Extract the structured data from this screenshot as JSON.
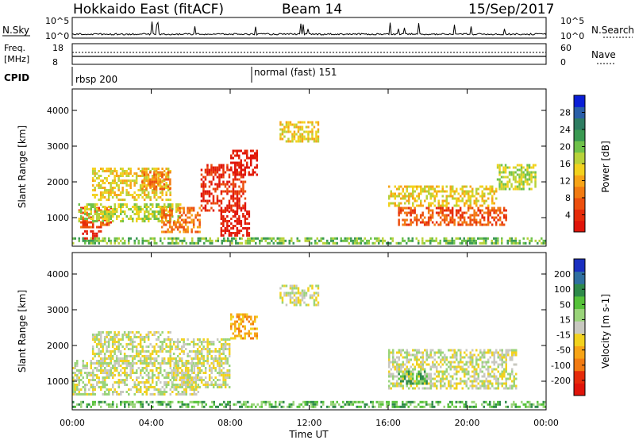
{
  "header": {
    "radar": "Hokkaido East (fitACF)",
    "beam": "Beam 14",
    "date": "15/Sep/2017"
  },
  "noise_panel": {
    "left_label": "N.Sky",
    "right_label": "N.Search",
    "left_ticks": [
      "10^5",
      "10^0"
    ],
    "right_ticks": [
      "10^5",
      "10^0"
    ]
  },
  "freq_panel": {
    "left_label_line1": "Freq.",
    "left_label_line2": "[MHz]",
    "left_ticks": [
      "18",
      "8"
    ],
    "right_label": "Nave",
    "right_ticks": [
      "60",
      "0"
    ]
  },
  "cpid_panel": {
    "label": "CPID",
    "modes": [
      {
        "name": "rbsp 200",
        "start_hour": 0
      },
      {
        "name": "normal (fast) 151",
        "start_hour": 9.0
      }
    ]
  },
  "chart_data": [
    {
      "type": "heatmap",
      "title": "",
      "ylabel": "Slant Range [km]",
      "xlabel": "",
      "ylim": [
        200,
        4600
      ],
      "yticks": [
        "1000",
        "2000",
        "3000",
        "4000"
      ],
      "xlim": [
        0,
        24
      ],
      "colorbar": {
        "label": "Power [dB]",
        "ticks": [
          "28",
          "24",
          "20",
          "16",
          "12",
          "8",
          "4"
        ],
        "colors": [
          "#0a1ed6",
          "#2a5fa8",
          "#2e7d62",
          "#3a9a52",
          "#6fc24a",
          "#b8d23a",
          "#f2d21e",
          "#f7a417",
          "#f27b12",
          "#ec4f0e",
          "#e62b0a",
          "#e0140a"
        ]
      },
      "regions_note": "echo regions in slant range vs time",
      "regions": [
        {
          "t0": 0.3,
          "t1": 2.0,
          "r0": 700,
          "r1": 1300,
          "level": 9
        },
        {
          "t0": 0.5,
          "t1": 1.5,
          "r0": 400,
          "r1": 650,
          "level": 11
        },
        {
          "t0": 0.3,
          "t1": 5.5,
          "r0": 900,
          "r1": 1400,
          "level": 5
        },
        {
          "t0": 1.0,
          "t1": 5.0,
          "r0": 1500,
          "r1": 2400,
          "level": 6
        },
        {
          "t0": 3.5,
          "t1": 5.0,
          "r0": 1800,
          "r1": 2300,
          "level": 8
        },
        {
          "t0": 4.5,
          "t1": 6.5,
          "r0": 600,
          "r1": 1300,
          "level": 8
        },
        {
          "t0": 6.5,
          "t1": 8.8,
          "r0": 1200,
          "r1": 2500,
          "level": 10
        },
        {
          "t0": 7.5,
          "t1": 9.0,
          "r0": 500,
          "r1": 1200,
          "level": 11
        },
        {
          "t0": 8.0,
          "t1": 9.4,
          "r0": 2200,
          "r1": 2900,
          "level": 11
        },
        {
          "t0": 10.5,
          "t1": 12.5,
          "r0": 3100,
          "r1": 3700,
          "level": 6
        },
        {
          "t0": 16.5,
          "t1": 22.0,
          "r0": 800,
          "r1": 1300,
          "level": 9
        },
        {
          "t0": 16.0,
          "t1": 21.5,
          "r0": 1300,
          "r1": 1900,
          "level": 6
        },
        {
          "t0": 21.5,
          "t1": 23.5,
          "r0": 1800,
          "r1": 2500,
          "level": 5
        },
        {
          "t0": 0.0,
          "t1": 24.0,
          "r0": 250,
          "r1": 450,
          "level": 4
        }
      ]
    },
    {
      "type": "heatmap",
      "title": "",
      "ylabel": "Slant Range [km]",
      "xlabel": "Time UT",
      "ylim": [
        200,
        4600
      ],
      "yticks": [
        "1000",
        "2000",
        "3000",
        "4000"
      ],
      "xlim": [
        0,
        24
      ],
      "xticks": [
        "00:00",
        "04:00",
        "08:00",
        "12:00",
        "16:00",
        "20:00",
        "00:00"
      ],
      "colorbar": {
        "label": "Velocity [m s-1]",
        "ticks": [
          "200",
          "100",
          "50",
          "15",
          "-15",
          "-50",
          "-100",
          "-200"
        ],
        "colors": [
          "#1a2fc0",
          "#2f6fa0",
          "#2e8a4a",
          "#56c23a",
          "#9ad47a",
          "#c8c8c0",
          "#f2d21e",
          "#f7a417",
          "#f27b12",
          "#e62b0a",
          "#e0140a"
        ]
      },
      "regions": [
        {
          "t0": 0.0,
          "t1": 6.5,
          "r0": 600,
          "r1": 1600,
          "level": 5
        },
        {
          "t0": 1.0,
          "t1": 5.0,
          "r0": 1500,
          "r1": 2400,
          "level": 5
        },
        {
          "t0": 5.0,
          "t1": 8.0,
          "r0": 800,
          "r1": 2200,
          "level": 5
        },
        {
          "t0": 8.0,
          "t1": 9.4,
          "r0": 2200,
          "r1": 2900,
          "level": 7
        },
        {
          "t0": 10.5,
          "t1": 12.5,
          "r0": 3100,
          "r1": 3700,
          "level": 5
        },
        {
          "t0": 16.0,
          "t1": 22.5,
          "r0": 800,
          "r1": 1900,
          "level": 5
        },
        {
          "t0": 16.5,
          "t1": 18.0,
          "r0": 900,
          "r1": 1300,
          "level": 3
        },
        {
          "t0": 0.0,
          "t1": 24.0,
          "r0": 250,
          "r1": 450,
          "level": 3
        }
      ]
    }
  ]
}
